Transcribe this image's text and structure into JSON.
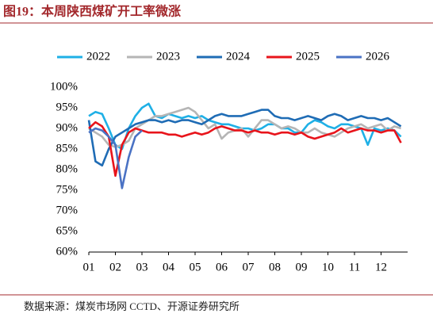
{
  "chart_data": {
    "type": "line",
    "title": "图19：本周陕西煤矿开工率微涨",
    "source": "数据来源：煤炭市场网 CCTD、开源证券研究所",
    "x": [
      1,
      1.25,
      1.5,
      1.75,
      2,
      2.25,
      2.5,
      2.75,
      3,
      3.25,
      3.5,
      3.75,
      4,
      4.25,
      4.5,
      4.75,
      5,
      5.25,
      5.5,
      5.75,
      6,
      6.25,
      6.5,
      6.75,
      7,
      7.25,
      7.5,
      7.75,
      8,
      8.25,
      8.5,
      8.75,
      9,
      9.25,
      9.5,
      9.75,
      10,
      10.25,
      10.5,
      10.75,
      11,
      11.25,
      11.5,
      11.75,
      12,
      12.25,
      12.5,
      12.75
    ],
    "xlim": [
      1,
      13
    ],
    "xticks": [
      {
        "value": 1,
        "label": "01"
      },
      {
        "value": 2,
        "label": "02"
      },
      {
        "value": 3,
        "label": "03"
      },
      {
        "value": 4,
        "label": "04"
      },
      {
        "value": 5,
        "label": "05"
      },
      {
        "value": 6,
        "label": "06"
      },
      {
        "value": 7,
        "label": "07"
      },
      {
        "value": 8,
        "label": "08"
      },
      {
        "value": 9,
        "label": "09"
      },
      {
        "value": 10,
        "label": "10"
      },
      {
        "value": 11,
        "label": "11"
      },
      {
        "value": 12,
        "label": "12"
      }
    ],
    "ylim": [
      60,
      100
    ],
    "yticks": [
      {
        "value": 60,
        "label": "60%"
      },
      {
        "value": 65,
        "label": "65%"
      },
      {
        "value": 70,
        "label": "70%"
      },
      {
        "value": 75,
        "label": "75%"
      },
      {
        "value": 80,
        "label": "80%"
      },
      {
        "value": 85,
        "label": "85%"
      },
      {
        "value": 90,
        "label": "90%"
      },
      {
        "value": 95,
        "label": "95%"
      },
      {
        "value": 100,
        "label": "100%"
      }
    ],
    "series": [
      {
        "name": "2022",
        "color": "#1fb0e6",
        "values": [
          93,
          94,
          93.5,
          90,
          86,
          85,
          90,
          93,
          95,
          96,
          93,
          92.5,
          93.5,
          93,
          92.5,
          93,
          92.5,
          93,
          92,
          91.5,
          91,
          91,
          90.5,
          90,
          90,
          89.5,
          90,
          91,
          91,
          90,
          90,
          89,
          89,
          91,
          92,
          91.5,
          90.5,
          90,
          91,
          91,
          90.5,
          90,
          86,
          90,
          89.5,
          90,
          89.5,
          88
        ]
      },
      {
        "name": "2023",
        "color": "#b5b5b5",
        "values": [
          90,
          89,
          88,
          86,
          85.5,
          86,
          87,
          90,
          91,
          92,
          93,
          93,
          93.5,
          94,
          94.5,
          95,
          94,
          92,
          90,
          91,
          87.5,
          89,
          89.5,
          90,
          88,
          90,
          92,
          92,
          91,
          90,
          90.5,
          90,
          89,
          89,
          90,
          89,
          88.5,
          88,
          89,
          90,
          90.5,
          91,
          90,
          90.5,
          91,
          89.5,
          90.5,
          90
        ]
      },
      {
        "name": "2024",
        "color": "#1f6cb5",
        "values": [
          92,
          82,
          81,
          85,
          88,
          89,
          90,
          91,
          91.5,
          92,
          92,
          91.5,
          92,
          91.5,
          92,
          92,
          91.5,
          91,
          92,
          93,
          93.5,
          93,
          93,
          93,
          93.5,
          94,
          94.5,
          94.5,
          93,
          92.5,
          92.5,
          92,
          92.5,
          93,
          92.5,
          92,
          93,
          93.5,
          93,
          92,
          92.5,
          93,
          92.5,
          92.5,
          92,
          92.5,
          91.5,
          90.5
        ]
      },
      {
        "name": "2025",
        "color": "#e8141b",
        "values": [
          90,
          91.5,
          90.5,
          88,
          78.5,
          86,
          89,
          90,
          89.5,
          89,
          89,
          89,
          88.5,
          88.5,
          88,
          88.5,
          89,
          88.5,
          89,
          90,
          90.5,
          90,
          89.5,
          89.5,
          89,
          89.5,
          89,
          89,
          88.5,
          89,
          89,
          88.5,
          89,
          88,
          87.5,
          88,
          88.5,
          89,
          90,
          89,
          89.5,
          90,
          89.5,
          89.5,
          89,
          89.5,
          89.5,
          86.5
        ]
      },
      {
        "name": "2026",
        "color": "#4a72c4",
        "values": [
          89,
          90,
          89.5,
          88,
          86,
          75.5,
          83,
          88,
          89.5,
          null,
          null,
          null,
          null,
          null,
          null,
          null,
          null,
          null,
          null,
          null,
          null,
          null,
          null,
          null,
          null,
          null,
          null,
          null,
          null,
          null,
          null,
          null,
          null,
          null,
          null,
          null,
          null,
          null,
          null,
          null,
          null,
          null,
          null,
          null,
          null,
          null,
          null,
          null
        ]
      }
    ]
  }
}
